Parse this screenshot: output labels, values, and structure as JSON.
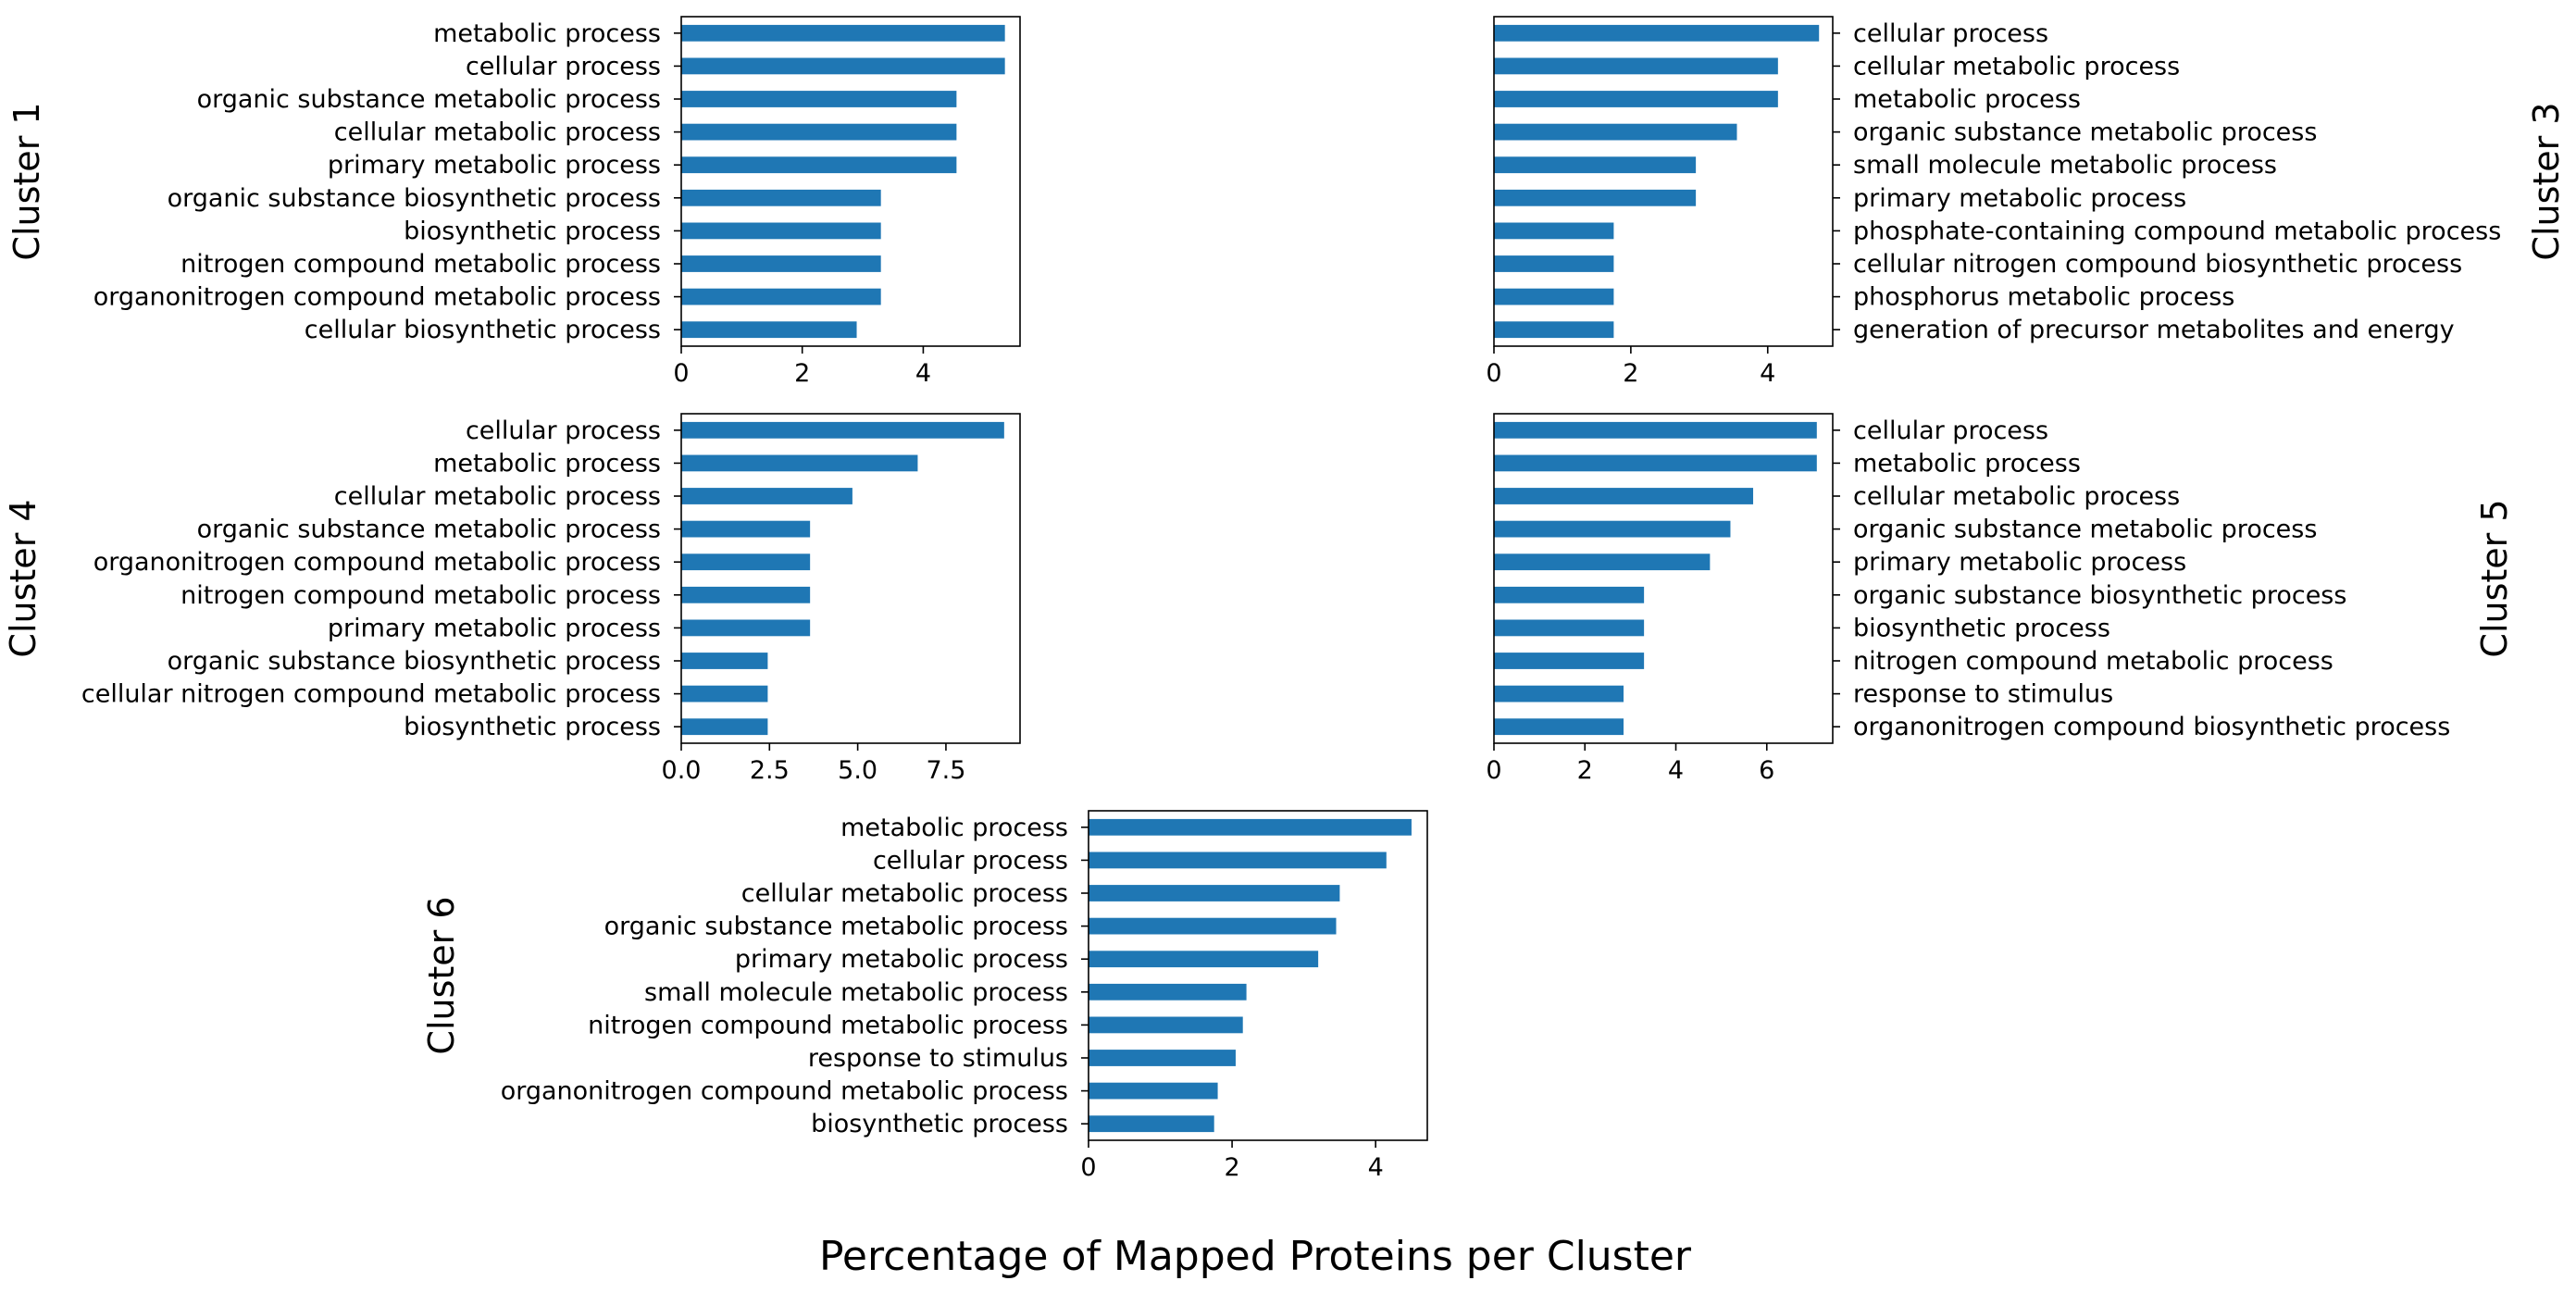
{
  "figure": {
    "xlabel": "Percentage of Mapped Proteins per Cluster",
    "bar_color": "#1f77b4"
  },
  "chart_data": [
    {
      "type": "bar",
      "orientation": "horizontal",
      "panel_label": "Cluster 1",
      "label_side": "left",
      "categories": [
        "metabolic process",
        "cellular process",
        "organic substance metabolic process",
        "cellular metabolic process",
        "primary metabolic process",
        "organic substance biosynthetic process",
        "biosynthetic process",
        "nitrogen compound metabolic process",
        "organonitrogen compound metabolic process",
        "cellular biosynthetic process"
      ],
      "values": [
        5.35,
        5.35,
        4.55,
        4.55,
        4.55,
        3.3,
        3.3,
        3.3,
        3.3,
        2.9
      ],
      "xlim": [
        0,
        5.6
      ],
      "xticks": [
        0,
        2,
        4
      ],
      "xtick_labels": [
        "0",
        "2",
        "4"
      ]
    },
    {
      "type": "bar",
      "orientation": "horizontal",
      "panel_label": "Cluster 3",
      "label_side": "right",
      "categories": [
        "cellular process",
        "cellular metabolic process",
        "metabolic process",
        "organic substance metabolic process",
        "small molecule metabolic process",
        "primary metabolic process",
        "phosphate-containing compound metabolic process",
        "cellular nitrogen compound biosynthetic process",
        "phosphorus metabolic process",
        "generation of precursor metabolites and energy"
      ],
      "values": [
        4.75,
        4.15,
        4.15,
        3.55,
        2.95,
        2.95,
        1.75,
        1.75,
        1.75,
        1.75
      ],
      "xlim": [
        0,
        4.95
      ],
      "xticks": [
        0,
        2,
        4
      ],
      "xtick_labels": [
        "0",
        "2",
        "4"
      ]
    },
    {
      "type": "bar",
      "orientation": "horizontal",
      "panel_label": "Cluster 4",
      "label_side": "left",
      "categories": [
        "cellular process",
        "metabolic process",
        "cellular metabolic process",
        "organic substance metabolic process",
        "organonitrogen compound metabolic process",
        "nitrogen compound metabolic process",
        "primary metabolic process",
        "organic substance biosynthetic process",
        "cellular nitrogen compound metabolic process",
        "biosynthetic process"
      ],
      "values": [
        9.15,
        6.7,
        4.85,
        3.65,
        3.65,
        3.65,
        3.65,
        2.45,
        2.45,
        2.45
      ],
      "xlim": [
        0,
        9.6
      ],
      "xticks": [
        0,
        2.5,
        5,
        7.5
      ],
      "xtick_labels": [
        "0.0",
        "2.5",
        "5.0",
        "7.5"
      ]
    },
    {
      "type": "bar",
      "orientation": "horizontal",
      "panel_label": "Cluster 5",
      "label_side": "right",
      "categories": [
        "cellular process",
        "metabolic process",
        "cellular metabolic process",
        "organic substance metabolic process",
        "primary metabolic process",
        "organic substance biosynthetic process",
        "biosynthetic process",
        "nitrogen compound metabolic process",
        "response to stimulus",
        "organonitrogen compound biosynthetic process"
      ],
      "values": [
        7.1,
        7.1,
        5.7,
        5.2,
        4.75,
        3.3,
        3.3,
        3.3,
        2.85,
        2.85
      ],
      "xlim": [
        0,
        7.45
      ],
      "xticks": [
        0,
        2,
        4,
        6
      ],
      "xtick_labels": [
        "0",
        "2",
        "4",
        "6"
      ]
    },
    {
      "type": "bar",
      "orientation": "horizontal",
      "panel_label": "Cluster 6",
      "label_side": "left",
      "categories": [
        "metabolic process",
        "cellular process",
        "cellular metabolic process",
        "organic substance metabolic process",
        "primary metabolic process",
        "small molecule metabolic process",
        "nitrogen compound metabolic process",
        "response to stimulus",
        "organonitrogen compound metabolic process",
        "biosynthetic process"
      ],
      "values": [
        4.5,
        4.15,
        3.5,
        3.45,
        3.2,
        2.2,
        2.15,
        2.05,
        1.8,
        1.75
      ],
      "xlim": [
        0,
        4.72
      ],
      "xticks": [
        0,
        2,
        4
      ],
      "xtick_labels": [
        "0",
        "2",
        "4"
      ]
    }
  ]
}
